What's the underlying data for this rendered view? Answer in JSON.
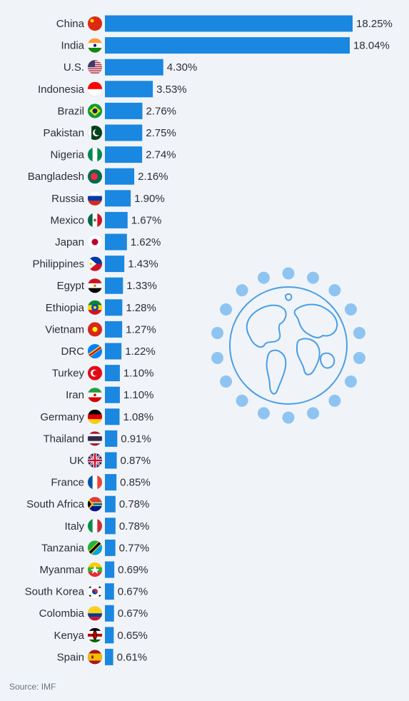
{
  "chart_data": {
    "type": "bar",
    "orientation": "horizontal",
    "categories": [
      "China",
      "India",
      "U.S.",
      "Indonesia",
      "Brazil",
      "Pakistan",
      "Nigeria",
      "Bangladesh",
      "Russia",
      "Mexico",
      "Japan",
      "Philippines",
      "Egypt",
      "Ethiopia",
      "Vietnam",
      "DRC",
      "Turkey",
      "Iran",
      "Germany",
      "Thailand",
      "UK",
      "France",
      "South Africa",
      "Italy",
      "Tanzania",
      "Myanmar",
      "South Korea",
      "Colombia",
      "Kenya",
      "Spain"
    ],
    "values": [
      18.25,
      18.04,
      4.3,
      3.53,
      2.76,
      2.75,
      2.74,
      2.16,
      1.9,
      1.67,
      1.62,
      1.43,
      1.33,
      1.28,
      1.27,
      1.22,
      1.1,
      1.1,
      1.08,
      0.91,
      0.87,
      0.85,
      0.78,
      0.78,
      0.77,
      0.69,
      0.67,
      0.67,
      0.65,
      0.61
    ],
    "value_labels": [
      "18.25%",
      "18.04%",
      "4.30%",
      "3.53%",
      "2.76%",
      "2.75%",
      "2.74%",
      "2.16%",
      "1.90%",
      "1.67%",
      "1.62%",
      "1.43%",
      "1.33%",
      "1.28%",
      "1.27%",
      "1.22%",
      "1.10%",
      "1.10%",
      "1.08%",
      "0.91%",
      "0.87%",
      "0.85%",
      "0.78%",
      "0.78%",
      "0.77%",
      "0.69%",
      "0.67%",
      "0.67%",
      "0.65%",
      "0.61%"
    ],
    "flags": [
      "china-flag-icon",
      "india-flag-icon",
      "us-flag-icon",
      "indonesia-flag-icon",
      "brazil-flag-icon",
      "pakistan-flag-icon",
      "nigeria-flag-icon",
      "bangladesh-flag-icon",
      "russia-flag-icon",
      "mexico-flag-icon",
      "japan-flag-icon",
      "philippines-flag-icon",
      "egypt-flag-icon",
      "ethiopia-flag-icon",
      "vietnam-flag-icon",
      "drc-flag-icon",
      "turkey-flag-icon",
      "iran-flag-icon",
      "germany-flag-icon",
      "thailand-flag-icon",
      "uk-flag-icon",
      "france-flag-icon",
      "south-africa-flag-icon",
      "italy-flag-icon",
      "tanzania-flag-icon",
      "myanmar-flag-icon",
      "south-korea-flag-icon",
      "colombia-flag-icon",
      "kenya-flag-icon",
      "spain-flag-icon"
    ],
    "bar_color": "#1a87e0",
    "grid": false,
    "legend": "none"
  },
  "source": "Source: IMF",
  "illustration": "globe-icon",
  "colors": {
    "background": "#f0f4f9",
    "bar": "#1a87e0",
    "globe": "#4a9ee6",
    "globe_dots": "#8ec4f1"
  }
}
